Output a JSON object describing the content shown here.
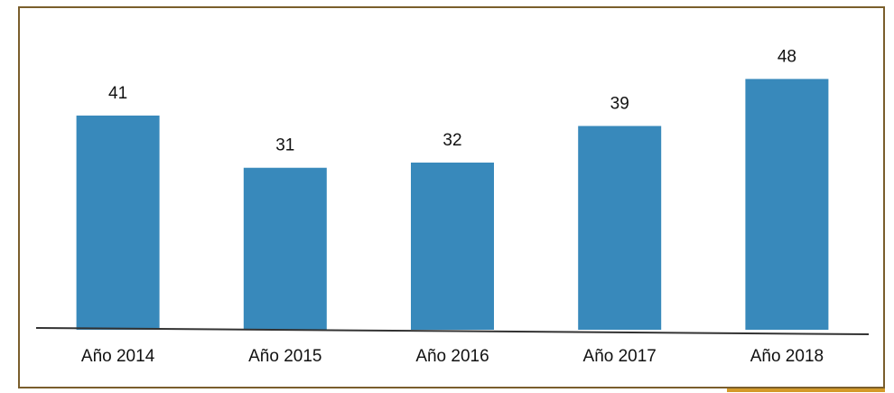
{
  "chart_data": {
    "type": "bar",
    "categories": [
      "Año 2014",
      "Año 2015",
      "Año 2016",
      "Año 2017",
      "Año 2018"
    ],
    "values": [
      41,
      31,
      32,
      39,
      48
    ],
    "color": "#3889bb",
    "ylim": [
      0,
      60
    ]
  }
}
